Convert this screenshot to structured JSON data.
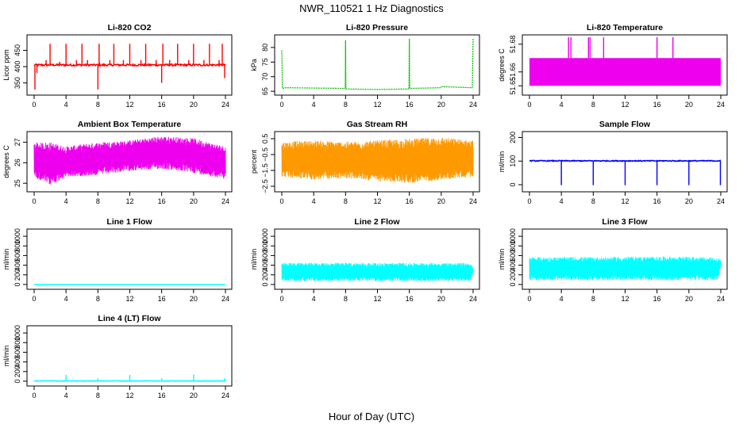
{
  "figure": {
    "title": "NWR_110521  1 Hz Diagnostics",
    "xlabel": "Hour of Day (UTC)"
  },
  "chart_data": [
    {
      "id": "co2",
      "type": "line",
      "title": "Li-820 CO2",
      "ylabel": "Licor ppm",
      "color": "#ff0000",
      "xlim": [
        0,
        24
      ],
      "ylim": [
        320,
        490
      ],
      "xticks": [
        0,
        4,
        8,
        12,
        16,
        20,
        24
      ],
      "yticks": [
        350,
        400,
        450
      ],
      "series": [
        {
          "baseline": 405,
          "noise": 3,
          "spikes": [
            {
              "x": 0.1,
              "y": 330
            },
            {
              "x": 0.35,
              "y": 380
            },
            {
              "x": 1.5,
              "y": 420
            },
            {
              "x": 2.0,
              "y": 470
            },
            {
              "x": 3.2,
              "y": 415
            },
            {
              "x": 4.0,
              "y": 470
            },
            {
              "x": 5.3,
              "y": 420
            },
            {
              "x": 6.0,
              "y": 470
            },
            {
              "x": 6.7,
              "y": 420
            },
            {
              "x": 8.0,
              "y": 330
            },
            {
              "x": 8.15,
              "y": 470
            },
            {
              "x": 9.5,
              "y": 420
            },
            {
              "x": 10.0,
              "y": 470
            },
            {
              "x": 11.2,
              "y": 420
            },
            {
              "x": 12.0,
              "y": 470
            },
            {
              "x": 13.4,
              "y": 420
            },
            {
              "x": 14.0,
              "y": 470
            },
            {
              "x": 15.3,
              "y": 420
            },
            {
              "x": 16.0,
              "y": 350
            },
            {
              "x": 16.15,
              "y": 470
            },
            {
              "x": 17.0,
              "y": 420
            },
            {
              "x": 18.0,
              "y": 470
            },
            {
              "x": 19.4,
              "y": 420
            },
            {
              "x": 20.0,
              "y": 470
            },
            {
              "x": 21.3,
              "y": 420
            },
            {
              "x": 22.0,
              "y": 470
            },
            {
              "x": 23.2,
              "y": 420
            },
            {
              "x": 23.6,
              "y": 470
            },
            {
              "x": 23.9,
              "y": 365
            }
          ]
        }
      ]
    },
    {
      "id": "pressure",
      "type": "line",
      "title": "Li-820 Pressure",
      "ylabel": "kPa",
      "color": "#00bb00",
      "xlim": [
        0,
        24
      ],
      "ylim": [
        64.5,
        83.5
      ],
      "xticks": [
        0,
        4,
        8,
        12,
        16,
        20,
        24
      ],
      "yticks": [
        65,
        70,
        75,
        80
      ],
      "series": [
        {
          "points": [
            [
              0.0,
              79
            ],
            [
              0.08,
              66
            ],
            [
              0.5,
              66.2
            ],
            [
              4.0,
              66.1
            ],
            [
              7.95,
              66.0
            ],
            [
              8.0,
              82.5
            ],
            [
              8.05,
              65.8
            ],
            [
              12.0,
              65.6
            ],
            [
              15.95,
              65.8
            ],
            [
              16.0,
              83
            ],
            [
              16.05,
              66.0
            ],
            [
              19.9,
              66.2
            ],
            [
              20.0,
              66.6
            ],
            [
              23.9,
              66.2
            ],
            [
              24.0,
              83
            ]
          ]
        }
      ]
    },
    {
      "id": "licor-temp",
      "type": "line",
      "title": "Li-820 Temperature",
      "ylabel": "degrees C",
      "color": "#ee00ee",
      "xlim": [
        0,
        24
      ],
      "ylim": [
        51.645,
        51.685
      ],
      "xticks": [
        0,
        4,
        8,
        12,
        16,
        20,
        24
      ],
      "yticks": [
        51.65,
        51.66,
        51.68
      ],
      "series": [
        {
          "band": [
            51.65,
            51.67
          ],
          "spikes": [
            {
              "x": 4.9,
              "y": 51.685
            },
            {
              "x": 5.2,
              "y": 51.685
            },
            {
              "x": 7.4,
              "y": 51.685
            },
            {
              "x": 7.6,
              "y": 51.685
            },
            {
              "x": 9.3,
              "y": 51.685
            },
            {
              "x": 16.0,
              "y": 51.685
            },
            {
              "x": 18.0,
              "y": 51.685
            }
          ]
        }
      ]
    },
    {
      "id": "ambient-box-temp",
      "type": "line",
      "title": "Ambient Box Temperature",
      "ylabel": "degrees C",
      "color": "#ee00ee",
      "xlim": [
        0,
        24
      ],
      "ylim": [
        24.7,
        27.4
      ],
      "xticks": [
        0,
        4,
        8,
        12,
        16,
        20,
        24
      ],
      "yticks": [
        25.0,
        26.0,
        27.0
      ],
      "series": [
        {
          "envelope": [
            [
              0,
              25.3,
              27.0
            ],
            [
              2,
              24.9,
              27.0
            ],
            [
              4,
              25.3,
              26.8
            ],
            [
              8,
              25.4,
              27.0
            ],
            [
              12,
              25.6,
              27.1
            ],
            [
              16,
              25.7,
              27.3
            ],
            [
              20,
              25.5,
              27.2
            ],
            [
              24,
              25.2,
              26.8
            ]
          ]
        }
      ]
    },
    {
      "id": "gas-stream-rh",
      "type": "line",
      "title": "Gas Stream RH",
      "ylabel": "percent",
      "color": "#ff9900",
      "xlim": [
        0,
        24
      ],
      "ylim": [
        -2.7,
        0.8
      ],
      "xticks": [
        0,
        4,
        8,
        12,
        16,
        20,
        24
      ],
      "yticks": [
        0.5,
        -0.5,
        -1.5,
        -2.5
      ],
      "series": [
        {
          "envelope": [
            [
              0,
              -1.9,
              0.3
            ],
            [
              4,
              -2.1,
              0.4
            ],
            [
              8,
              -2.0,
              0.3
            ],
            [
              12,
              -2.2,
              0.4
            ],
            [
              16,
              -2.3,
              0.5
            ],
            [
              20,
              -2.1,
              0.6
            ],
            [
              24,
              -1.9,
              0.4
            ]
          ]
        }
      ]
    },
    {
      "id": "sample-flow",
      "type": "line",
      "title": "Sample Flow",
      "ylabel": "ml/min",
      "color": "#0000ff",
      "xlim": [
        0,
        24
      ],
      "ylim": [
        -20,
        215
      ],
      "xticks": [
        0,
        4,
        8,
        12,
        16,
        20,
        24
      ],
      "yticks": [
        0,
        100,
        200
      ],
      "series": [
        {
          "baseline": 101,
          "noise": 2,
          "spikes": [
            {
              "x": 4.0,
              "y": -2
            },
            {
              "x": 8.0,
              "y": -2
            },
            {
              "x": 12.0,
              "y": -2
            },
            {
              "x": 16.0,
              "y": -2
            },
            {
              "x": 20.0,
              "y": -2
            },
            {
              "x": 23.95,
              "y": -2
            }
          ]
        }
      ]
    },
    {
      "id": "line1-flow",
      "type": "line",
      "title": "Line 1 Flow",
      "ylabel": "ml/min",
      "color": "#00ffff",
      "xlim": [
        0,
        24
      ],
      "ylim": [
        -50,
        1100
      ],
      "xticks": [
        0,
        4,
        8,
        12,
        16,
        20,
        24
      ],
      "yticks": [
        0,
        200,
        400,
        600,
        800,
        1000
      ],
      "series": [
        {
          "baseline": 0,
          "noise": 0,
          "spikes": []
        }
      ]
    },
    {
      "id": "line2-flow",
      "type": "line",
      "title": "Line 2 Flow",
      "ylabel": "ml/min",
      "color": "#00ffff",
      "xlim": [
        0,
        24
      ],
      "ylim": [
        -50,
        1100
      ],
      "xticks": [
        0,
        4,
        8,
        12,
        16,
        20,
        24
      ],
      "yticks": [
        0,
        200,
        400,
        600,
        800,
        1000
      ],
      "series": [
        {
          "envelope": [
            [
              0,
              70,
              450
            ],
            [
              4,
              70,
              450
            ],
            [
              8,
              70,
              450
            ],
            [
              12,
              70,
              450
            ],
            [
              16,
              70,
              450
            ],
            [
              20,
              70,
              450
            ],
            [
              23.6,
              70,
              450
            ],
            [
              24,
              250,
              350
            ]
          ]
        }
      ]
    },
    {
      "id": "line3-flow",
      "type": "line",
      "title": "Line 3 Flow",
      "ylabel": "ml/min",
      "color": "#00ffff",
      "xlim": [
        0,
        24
      ],
      "ylim": [
        -50,
        1100
      ],
      "xticks": [
        0,
        4,
        8,
        12,
        16,
        20,
        24
      ],
      "yticks": [
        0,
        200,
        400,
        600,
        800,
        1000
      ],
      "series": [
        {
          "envelope": [
            [
              0,
              90,
              570
            ],
            [
              4,
              90,
              570
            ],
            [
              8,
              90,
              570
            ],
            [
              12,
              90,
              575
            ],
            [
              16,
              90,
              580
            ],
            [
              20,
              90,
              575
            ],
            [
              23.6,
              90,
              560
            ],
            [
              24,
              400,
              500
            ]
          ]
        }
      ]
    },
    {
      "id": "line4-flow",
      "type": "line",
      "title": "Line 4 (LT) Flow",
      "ylabel": "ml/min",
      "color": "#00ffff",
      "xlim": [
        0,
        24
      ],
      "ylim": [
        -50,
        1100
      ],
      "xticks": [
        0,
        4,
        8,
        12,
        16,
        20,
        24
      ],
      "yticks": [
        0,
        200,
        400,
        600,
        800,
        1000
      ],
      "series": [
        {
          "baseline": 5,
          "noise": 3,
          "spikes": [
            {
              "x": 4.0,
              "y": 130
            },
            {
              "x": 8.0,
              "y": 60
            },
            {
              "x": 12.0,
              "y": 130
            },
            {
              "x": 16.0,
              "y": 60
            },
            {
              "x": 20.0,
              "y": 140
            },
            {
              "x": 23.9,
              "y": 60
            }
          ]
        }
      ]
    }
  ]
}
